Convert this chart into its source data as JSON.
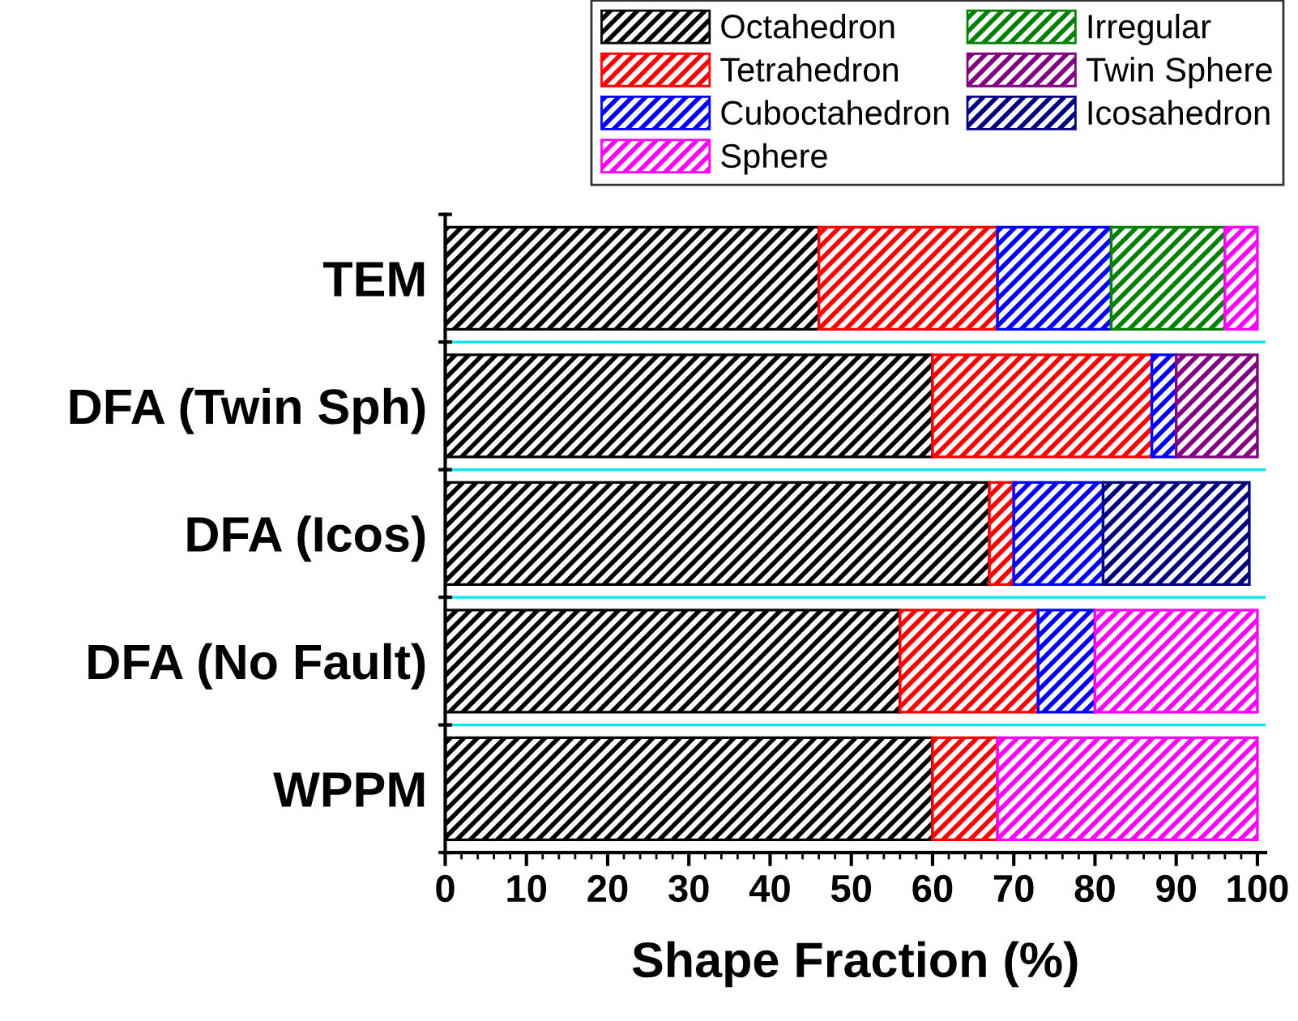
{
  "chart_data": {
    "type": "bar",
    "orientation": "horizontal",
    "stacked": true,
    "xlabel": "Shape Fraction (%)",
    "categories": [
      "TEM",
      "DFA (Twin Sph)",
      "DFA (Icos)",
      "DFA (No Fault)",
      "WPPM"
    ],
    "series": [
      {
        "name": "Octahedron",
        "color": "#000000",
        "values": [
          46,
          60,
          67,
          56,
          60
        ]
      },
      {
        "name": "Tetrahedron",
        "color": "#ff0000",
        "values": [
          22,
          27,
          3,
          17,
          8
        ]
      },
      {
        "name": "Cuboctahedron",
        "color": "#0000ff",
        "values": [
          14,
          3,
          11,
          7,
          null
        ]
      },
      {
        "name": "Irregular",
        "color": "#008000",
        "values": [
          14,
          null,
          null,
          null,
          null
        ]
      },
      {
        "name": "Twin Sphere",
        "color": "#800080",
        "values": [
          null,
          10,
          null,
          null,
          null
        ]
      },
      {
        "name": "Icosahedron",
        "color": "#000080",
        "values": [
          null,
          null,
          18,
          null,
          null
        ]
      },
      {
        "name": "Sphere",
        "color": "#ff00ff",
        "values": [
          4,
          null,
          null,
          20,
          32
        ]
      }
    ],
    "xlim": [
      0,
      101
    ],
    "xticks": [
      0,
      10,
      20,
      30,
      40,
      50,
      60,
      70,
      80,
      90,
      100
    ],
    "grid": "y",
    "legend": "top"
  }
}
